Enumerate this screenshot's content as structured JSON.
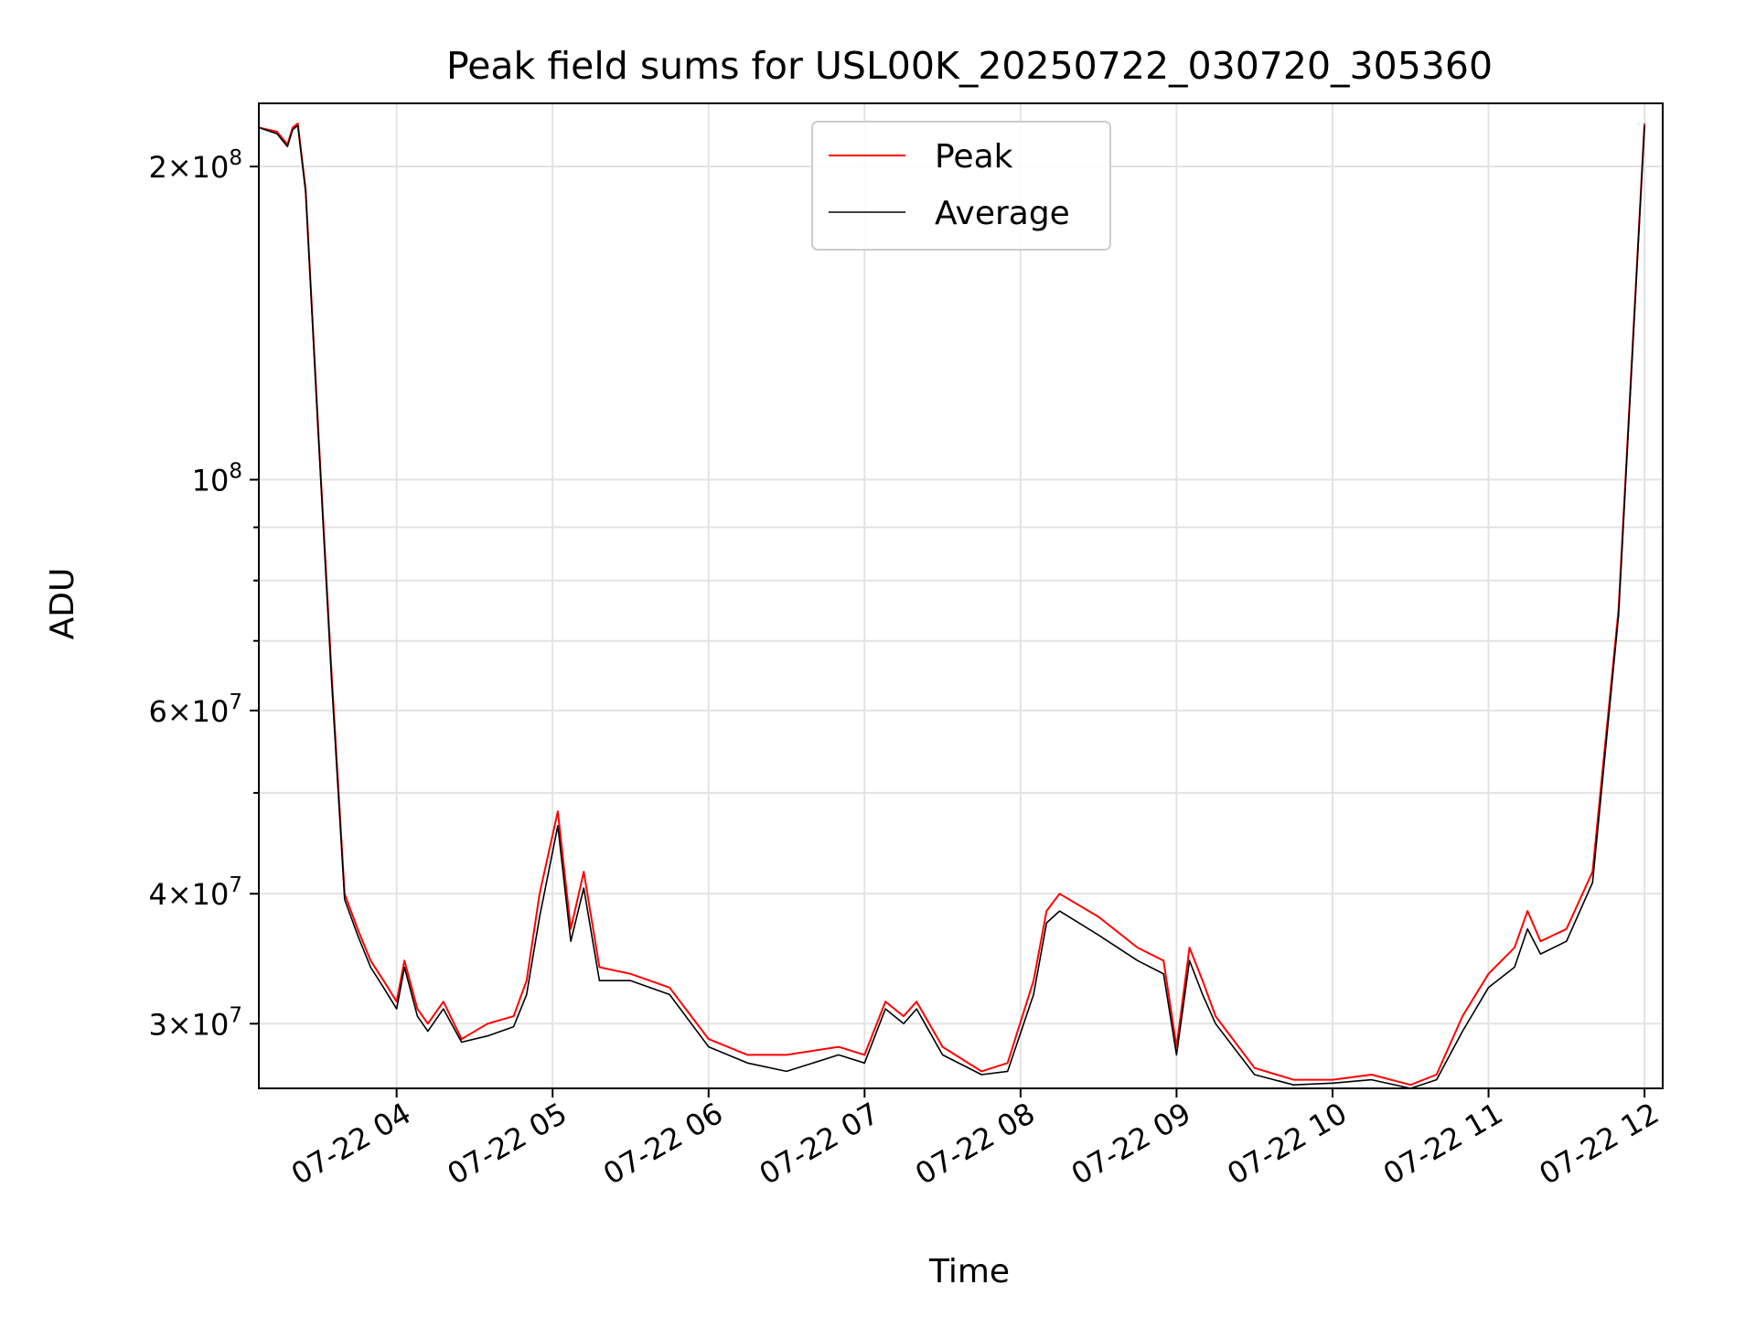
{
  "chart_data": {
    "type": "line",
    "title": "Peak field sums for USL00K_20250722_030720_305360",
    "xlabel": "Time",
    "ylabel": "ADU",
    "y_scale": "log",
    "grid": true,
    "legend_position": "top-center",
    "xlim": [
      "2025-07-22 03:07",
      "2025-07-22 12:07"
    ],
    "ylim": [
      26000000,
      230000000
    ],
    "x_ticks": [
      {
        "value": "2025-07-22 04:00",
        "label": "07-22 04"
      },
      {
        "value": "2025-07-22 05:00",
        "label": "07-22 05"
      },
      {
        "value": "2025-07-22 06:00",
        "label": "07-22 06"
      },
      {
        "value": "2025-07-22 07:00",
        "label": "07-22 07"
      },
      {
        "value": "2025-07-22 08:00",
        "label": "07-22 08"
      },
      {
        "value": "2025-07-22 09:00",
        "label": "07-22 09"
      },
      {
        "value": "2025-07-22 10:00",
        "label": "07-22 10"
      },
      {
        "value": "2025-07-22 11:00",
        "label": "07-22 11"
      },
      {
        "value": "2025-07-22 12:00",
        "label": "07-22 12"
      }
    ],
    "y_ticks": [
      {
        "value": 30000000,
        "mant": "3",
        "exp": "7"
      },
      {
        "value": 40000000,
        "mant": "4",
        "exp": "7"
      },
      {
        "value": 60000000,
        "mant": "6",
        "exp": "7"
      },
      {
        "value": 100000000,
        "mant": "",
        "exp": "8"
      },
      {
        "value": 200000000,
        "mant": "2",
        "exp": "8"
      }
    ],
    "y_minor_ticks": [
      50000000,
      70000000,
      80000000,
      90000000
    ],
    "series": [
      {
        "name": "Peak",
        "color": "#ff0000",
        "x": [
          "2025-07-22 03:07",
          "2025-07-22 03:14",
          "2025-07-22 03:18",
          "2025-07-22 03:20",
          "2025-07-22 03:22",
          "2025-07-22 03:25",
          "2025-07-22 03:30",
          "2025-07-22 03:35",
          "2025-07-22 03:40",
          "2025-07-22 03:45",
          "2025-07-22 03:50",
          "2025-07-22 03:55",
          "2025-07-22 04:00",
          "2025-07-22 04:03",
          "2025-07-22 04:08",
          "2025-07-22 04:12",
          "2025-07-22 04:18",
          "2025-07-22 04:25",
          "2025-07-22 04:35",
          "2025-07-22 04:45",
          "2025-07-22 04:50",
          "2025-07-22 04:55",
          "2025-07-22 05:02",
          "2025-07-22 05:07",
          "2025-07-22 05:12",
          "2025-07-22 05:18",
          "2025-07-22 05:30",
          "2025-07-22 05:45",
          "2025-07-22 06:00",
          "2025-07-22 06:15",
          "2025-07-22 06:30",
          "2025-07-22 06:50",
          "2025-07-22 07:00",
          "2025-07-22 07:08",
          "2025-07-22 07:15",
          "2025-07-22 07:20",
          "2025-07-22 07:30",
          "2025-07-22 07:45",
          "2025-07-22 07:55",
          "2025-07-22 08:05",
          "2025-07-22 08:10",
          "2025-07-22 08:15",
          "2025-07-22 08:30",
          "2025-07-22 08:45",
          "2025-07-22 08:55",
          "2025-07-22 09:00",
          "2025-07-22 09:05",
          "2025-07-22 09:10",
          "2025-07-22 09:15",
          "2025-07-22 09:30",
          "2025-07-22 09:45",
          "2025-07-22 10:00",
          "2025-07-22 10:15",
          "2025-07-22 10:30",
          "2025-07-22 10:40",
          "2025-07-22 10:50",
          "2025-07-22 11:00",
          "2025-07-22 11:10",
          "2025-07-22 11:15",
          "2025-07-22 11:20",
          "2025-07-22 11:30",
          "2025-07-22 11:40",
          "2025-07-22 11:50",
          "2025-07-22 12:00"
        ],
        "y": [
          218000000,
          216000000,
          210000000,
          218000000,
          220000000,
          190000000,
          110000000,
          65000000,
          40000000,
          37000000,
          34500000,
          33000000,
          31500000,
          34500000,
          31000000,
          30000000,
          31500000,
          29000000,
          30000000,
          30500000,
          33000000,
          40000000,
          48000000,
          37000000,
          42000000,
          34000000,
          33500000,
          32500000,
          29000000,
          28000000,
          28000000,
          28500000,
          28000000,
          31500000,
          30500000,
          31500000,
          28500000,
          27000000,
          27500000,
          33000000,
          38500000,
          40000000,
          38000000,
          35500000,
          34500000,
          28500000,
          35500000,
          33000000,
          30500000,
          27200000,
          26500000,
          26500000,
          26800000,
          26200000,
          26800000,
          30500000,
          33500000,
          35500000,
          38500000,
          36000000,
          37000000,
          42000000,
          75000000,
          220000000
        ]
      },
      {
        "name": "Average",
        "color": "#000000",
        "x": [
          "2025-07-22 03:07",
          "2025-07-22 03:14",
          "2025-07-22 03:18",
          "2025-07-22 03:20",
          "2025-07-22 03:22",
          "2025-07-22 03:25",
          "2025-07-22 03:30",
          "2025-07-22 03:35",
          "2025-07-22 03:40",
          "2025-07-22 03:45",
          "2025-07-22 03:50",
          "2025-07-22 03:55",
          "2025-07-22 04:00",
          "2025-07-22 04:03",
          "2025-07-22 04:08",
          "2025-07-22 04:12",
          "2025-07-22 04:18",
          "2025-07-22 04:25",
          "2025-07-22 04:35",
          "2025-07-22 04:45",
          "2025-07-22 04:50",
          "2025-07-22 04:55",
          "2025-07-22 05:02",
          "2025-07-22 05:07",
          "2025-07-22 05:12",
          "2025-07-22 05:18",
          "2025-07-22 05:30",
          "2025-07-22 05:45",
          "2025-07-22 06:00",
          "2025-07-22 06:15",
          "2025-07-22 06:30",
          "2025-07-22 06:50",
          "2025-07-22 07:00",
          "2025-07-22 07:08",
          "2025-07-22 07:15",
          "2025-07-22 07:20",
          "2025-07-22 07:30",
          "2025-07-22 07:45",
          "2025-07-22 07:55",
          "2025-07-22 08:05",
          "2025-07-22 08:10",
          "2025-07-22 08:15",
          "2025-07-22 08:30",
          "2025-07-22 08:45",
          "2025-07-22 08:55",
          "2025-07-22 09:00",
          "2025-07-22 09:05",
          "2025-07-22 09:10",
          "2025-07-22 09:15",
          "2025-07-22 09:30",
          "2025-07-22 09:45",
          "2025-07-22 10:00",
          "2025-07-22 10:15",
          "2025-07-22 10:30",
          "2025-07-22 10:40",
          "2025-07-22 10:50",
          "2025-07-22 11:00",
          "2025-07-22 11:10",
          "2025-07-22 11:15",
          "2025-07-22 11:20",
          "2025-07-22 11:30",
          "2025-07-22 11:40",
          "2025-07-22 11:50",
          "2025-07-22 12:00"
        ],
        "y": [
          218000000,
          215000000,
          209000000,
          217000000,
          219000000,
          189000000,
          109000000,
          64000000,
          39500000,
          36500000,
          34000000,
          32500000,
          31000000,
          34000000,
          30500000,
          29500000,
          31000000,
          28800000,
          29200000,
          29800000,
          32000000,
          38000000,
          46500000,
          36000000,
          40500000,
          33000000,
          33000000,
          32000000,
          28500000,
          27500000,
          27000000,
          28000000,
          27500000,
          31000000,
          30000000,
          31000000,
          28000000,
          26800000,
          27000000,
          32000000,
          37500000,
          38500000,
          36500000,
          34500000,
          33500000,
          28000000,
          34500000,
          32000000,
          30000000,
          26800000,
          26200000,
          26300000,
          26500000,
          26000000,
          26500000,
          29500000,
          32500000,
          34000000,
          37000000,
          35000000,
          36000000,
          41000000,
          74000000,
          219000000
        ]
      }
    ]
  }
}
